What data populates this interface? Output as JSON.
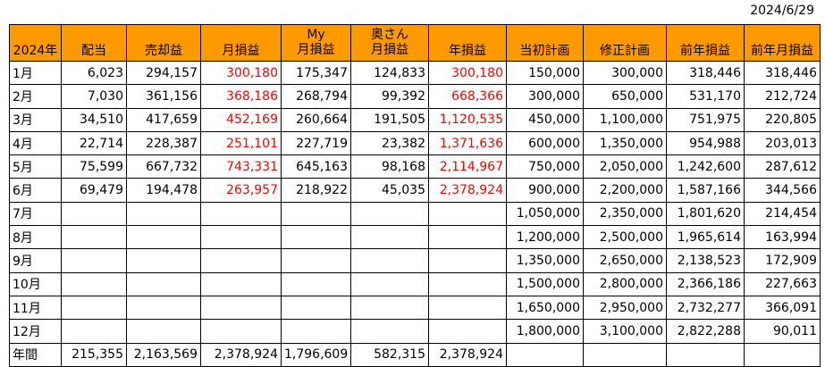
{
  "date": "2024/6/29",
  "colors": {
    "header_bg": "#ff9900",
    "loss_text": "#ff0000"
  },
  "headers": [
    "2024年",
    "配当",
    "売却益",
    "月損益",
    "My\n月損益",
    "奥さん\n月損益",
    "年損益",
    "当初計画",
    "修正計画",
    "前年損益",
    "前年月損益"
  ],
  "rows": [
    {
      "label": "1月",
      "dividend": "6,023",
      "sale": "294,157",
      "monthly": "300,180",
      "my": "175,347",
      "wife": "124,833",
      "yearly": "300,180",
      "plan": "150,000",
      "revised": "300,000",
      "prev_year": "318,446",
      "prev_month": "318,446"
    },
    {
      "label": "2月",
      "dividend": "7,030",
      "sale": "361,156",
      "monthly": "368,186",
      "my": "268,794",
      "wife": "99,392",
      "yearly": "668,366",
      "plan": "300,000",
      "revised": "650,000",
      "prev_year": "531,170",
      "prev_month": "212,724"
    },
    {
      "label": "3月",
      "dividend": "34,510",
      "sale": "417,659",
      "monthly": "452,169",
      "my": "260,664",
      "wife": "191,505",
      "yearly": "1,120,535",
      "plan": "450,000",
      "revised": "1,100,000",
      "prev_year": "751,975",
      "prev_month": "220,805"
    },
    {
      "label": "4月",
      "dividend": "22,714",
      "sale": "228,387",
      "monthly": "251,101",
      "my": "227,719",
      "wife": "23,382",
      "yearly": "1,371,636",
      "plan": "600,000",
      "revised": "1,350,000",
      "prev_year": "954,988",
      "prev_month": "203,013"
    },
    {
      "label": "5月",
      "dividend": "75,599",
      "sale": "667,732",
      "monthly": "743,331",
      "my": "645,163",
      "wife": "98,168",
      "yearly": "2,114,967",
      "plan": "750,000",
      "revised": "2,050,000",
      "prev_year": "1,242,600",
      "prev_month": "287,612"
    },
    {
      "label": "6月",
      "dividend": "69,479",
      "sale": "194,478",
      "monthly": "263,957",
      "my": "218,922",
      "wife": "45,035",
      "yearly": "2,378,924",
      "plan": "900,000",
      "revised": "2,200,000",
      "prev_year": "1,587,166",
      "prev_month": "344,566"
    },
    {
      "label": "7月",
      "dividend": "",
      "sale": "",
      "monthly": "",
      "my": "",
      "wife": "",
      "yearly": "",
      "plan": "1,050,000",
      "revised": "2,350,000",
      "prev_year": "1,801,620",
      "prev_month": "214,454"
    },
    {
      "label": "8月",
      "dividend": "",
      "sale": "",
      "monthly": "",
      "my": "",
      "wife": "",
      "yearly": "",
      "plan": "1,200,000",
      "revised": "2,500,000",
      "prev_year": "1,965,614",
      "prev_month": "163,994"
    },
    {
      "label": "9月",
      "dividend": "",
      "sale": "",
      "monthly": "",
      "my": "",
      "wife": "",
      "yearly": "",
      "plan": "1,350,000",
      "revised": "2,650,000",
      "prev_year": "2,138,523",
      "prev_month": "172,909"
    },
    {
      "label": "10月",
      "dividend": "",
      "sale": "",
      "monthly": "",
      "my": "",
      "wife": "",
      "yearly": "",
      "plan": "1,500,000",
      "revised": "2,800,000",
      "prev_year": "2,366,186",
      "prev_month": "227,663"
    },
    {
      "label": "11月",
      "dividend": "",
      "sale": "",
      "monthly": "",
      "my": "",
      "wife": "",
      "yearly": "",
      "plan": "1,650,000",
      "revised": "2,950,000",
      "prev_year": "2,732,277",
      "prev_month": "366,091"
    },
    {
      "label": "12月",
      "dividend": "",
      "sale": "",
      "monthly": "",
      "my": "",
      "wife": "",
      "yearly": "",
      "plan": "1,800,000",
      "revised": "3,100,000",
      "prev_year": "2,822,288",
      "prev_month": "90,011"
    },
    {
      "label": "年間",
      "dividend": "215,355",
      "sale": "2,163,569",
      "monthly": "2,378,924",
      "my": "1,796,609",
      "wife": "582,315",
      "yearly": "2,378,924",
      "plan": "",
      "revised": "",
      "prev_year": "",
      "prev_month": ""
    }
  ]
}
